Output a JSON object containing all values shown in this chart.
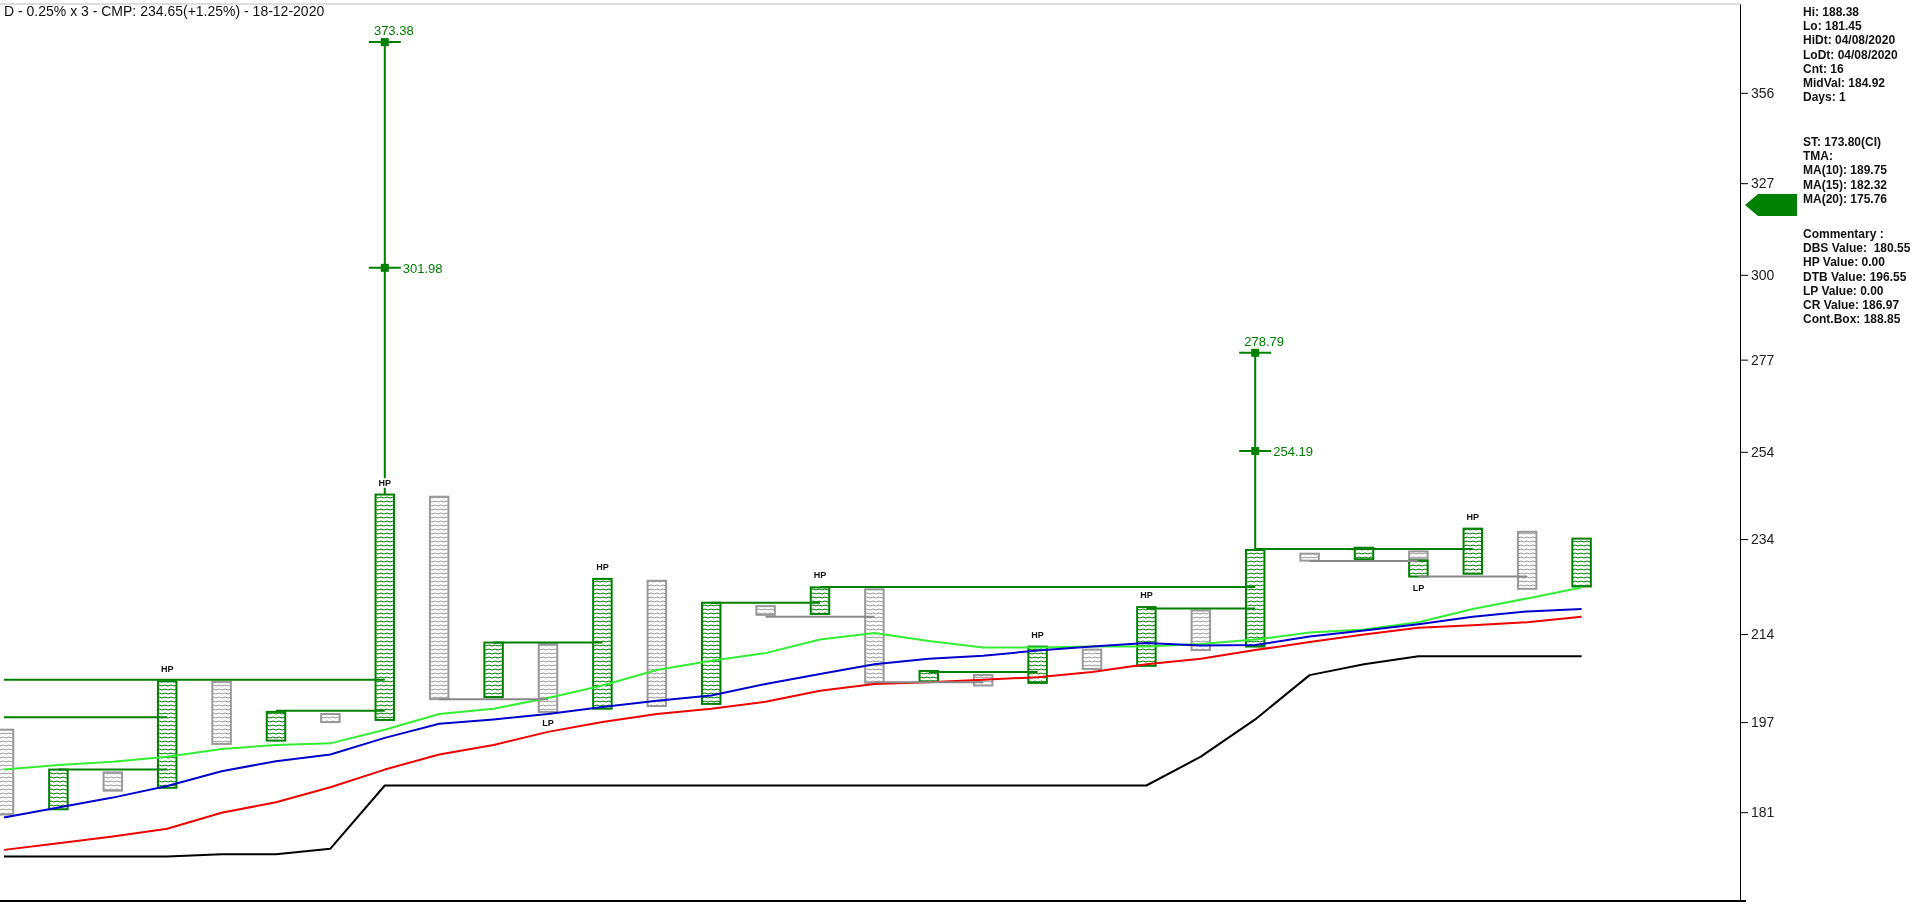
{
  "chart_data": {
    "type": "bar",
    "title": "D - 0.25% x 3 - CMP: 234.65(+1.25%) - 18-12-2020",
    "log": true,
    "ylim": [
      166.5,
      387
    ],
    "yticks": [
      181,
      197,
      214,
      234,
      254,
      277,
      300,
      327,
      356
    ],
    "tick_labels": "y",
    "categories": [
      null,
      null,
      null,
      null,
      null,
      null,
      null,
      null,
      null,
      null,
      null,
      null,
      null,
      null,
      null,
      null,
      null,
      null,
      null,
      null,
      null,
      null,
      null,
      null,
      null,
      null,
      null,
      null,
      null,
      null
    ],
    "series": [
      {
        "type": "line",
        "color": "#33ee33",
        "values": [
          188.4,
          189.2,
          189.8,
          190.7,
          192.1,
          192.8,
          193.1,
          195.6,
          198.5,
          199.5,
          201.5,
          203.9,
          206.9,
          208.7,
          210.2,
          212.9,
          214.2,
          212.6,
          211.3,
          211.3,
          211.5,
          211.5,
          212.0,
          212.9,
          214.3,
          214.9,
          216.4,
          219.1,
          221.3,
          223.6
        ]
      },
      {
        "type": "line",
        "color": "#0000cc",
        "values": [
          180.1,
          181.8,
          183.5,
          185.5,
          188.1,
          189.9,
          191.1,
          194.1,
          196.7,
          197.5,
          198.5,
          199.8,
          201.0,
          202.0,
          204.2,
          206.1,
          208.0,
          209.1,
          209.7,
          210.7,
          211.5,
          212.2,
          211.7,
          211.8,
          213.5,
          214.7,
          216.0,
          217.5,
          218.6,
          219.1
        ]
      },
      {
        "type": "line",
        "color": "#ee0000",
        "values": [
          174.7,
          175.8,
          176.9,
          178.2,
          180.9,
          182.7,
          185.3,
          188.4,
          191.1,
          192.8,
          195.2,
          197.0,
          198.5,
          199.5,
          200.8,
          202.9,
          204.2,
          204.5,
          205.0,
          205.5,
          206.5,
          208.0,
          209.1,
          210.8,
          212.4,
          213.9,
          215.3,
          215.8,
          216.4,
          217.5
        ]
      },
      {
        "type": "line",
        "color": "#000000",
        "values": [
          173.6,
          173.6,
          173.6,
          173.6,
          174.0,
          174.0,
          174.9,
          185.6,
          185.6,
          185.6,
          185.6,
          185.6,
          185.6,
          185.6,
          185.6,
          185.6,
          185.6,
          185.6,
          185.6,
          185.6,
          185.6,
          185.6,
          190.7,
          197.5,
          205.9,
          208.0,
          209.6,
          209.6,
          209.6,
          209.6
        ]
      },
      {
        "type": "line",
        "color": "#008000",
        "values": [
          205.0,
          205.0,
          205.0,
          205.0,
          205.0,
          205.0,
          205.0,
          205.0,
          null,
          null,
          null,
          null,
          null,
          null,
          null,
          null,
          null,
          null,
          null,
          null,
          null,
          null,
          null,
          null,
          null,
          null,
          null,
          null,
          null,
          null
        ]
      },
      {
        "type": "line",
        "color": "#008000",
        "values": [
          197.9,
          197.9,
          197.9,
          197.9,
          null,
          null,
          null,
          null,
          null,
          null,
          null,
          null,
          null,
          null,
          null,
          null,
          null,
          null,
          null,
          null,
          null,
          null,
          null,
          null,
          null,
          null,
          null,
          null,
          null,
          null
        ]
      },
      {
        "type": "line",
        "color": "#008000",
        "values": [
          null,
          188.4,
          188.4,
          188.4,
          null,
          null,
          null,
          null,
          null,
          null,
          null,
          null,
          null,
          null,
          null,
          null,
          null,
          null,
          null,
          null,
          null,
          null,
          null,
          null,
          null,
          null,
          null,
          null,
          null,
          null
        ]
      },
      {
        "type": "line",
        "color": "#008000",
        "values": [
          null,
          null,
          null,
          null,
          null,
          199.1,
          199.1,
          199.1,
          null,
          null,
          null,
          null,
          null,
          null,
          null,
          null,
          null,
          null,
          null,
          null,
          null,
          null,
          null,
          null,
          null,
          null,
          null,
          null,
          null,
          null
        ]
      },
      {
        "type": "line",
        "color": "#888888",
        "values": [
          null,
          null,
          null,
          null,
          null,
          null,
          null,
          null,
          201.3,
          201.3,
          201.3,
          null,
          null,
          null,
          null,
          null,
          null,
          null,
          null,
          null,
          null,
          null,
          null,
          null,
          null,
          null,
          null,
          null,
          null,
          null
        ]
      },
      {
        "type": "line",
        "color": "#008000",
        "values": [
          null,
          null,
          null,
          null,
          null,
          null,
          null,
          null,
          null,
          212.3,
          212.3,
          212.3,
          null,
          null,
          null,
          null,
          null,
          null,
          null,
          null,
          null,
          null,
          null,
          null,
          null,
          null,
          null,
          null,
          null,
          null
        ]
      },
      {
        "type": "line",
        "color": "#008000",
        "values": [
          null,
          null,
          null,
          null,
          null,
          null,
          null,
          null,
          null,
          null,
          null,
          null,
          null,
          220.4,
          220.4,
          220.4,
          null,
          null,
          null,
          null,
          null,
          null,
          null,
          null,
          null,
          null,
          null,
          null,
          null,
          null
        ]
      },
      {
        "type": "line",
        "color": "#888888",
        "values": [
          null,
          null,
          null,
          null,
          null,
          null,
          null,
          null,
          null,
          null,
          null,
          null,
          null,
          null,
          217.5,
          217.5,
          217.5,
          null,
          null,
          null,
          null,
          null,
          null,
          null,
          null,
          null,
          null,
          null,
          null,
          null
        ]
      },
      {
        "type": "line",
        "color": "#008000",
        "values": [
          null,
          null,
          null,
          null,
          null,
          null,
          null,
          null,
          null,
          null,
          null,
          null,
          null,
          null,
          null,
          223.7,
          223.7,
          223.7,
          223.7,
          223.7,
          223.7,
          223.7,
          223.7,
          223.7,
          null,
          null,
          null,
          null,
          null,
          null
        ]
      },
      {
        "type": "line",
        "color": "#888888",
        "values": [
          null,
          null,
          null,
          null,
          null,
          null,
          null,
          null,
          null,
          null,
          null,
          null,
          null,
          null,
          null,
          null,
          204.5,
          204.5,
          204.5,
          null,
          null,
          null,
          null,
          null,
          null,
          null,
          null,
          null,
          null,
          null
        ]
      },
      {
        "type": "line",
        "color": "#008000",
        "values": [
          null,
          null,
          null,
          null,
          null,
          null,
          null,
          null,
          null,
          null,
          null,
          null,
          null,
          null,
          null,
          null,
          null,
          206.5,
          206.5,
          206.5,
          null,
          null,
          null,
          null,
          null,
          null,
          null,
          null,
          null,
          null
        ]
      },
      {
        "type": "line",
        "color": "#008000",
        "values": [
          null,
          null,
          null,
          null,
          null,
          null,
          null,
          null,
          null,
          null,
          null,
          null,
          null,
          null,
          null,
          null,
          null,
          null,
          null,
          null,
          null,
          219.2,
          219.2,
          219.2,
          null,
          null,
          null,
          null,
          null,
          null
        ]
      },
      {
        "type": "line",
        "color": "#008000",
        "values": [
          null,
          null,
          null,
          null,
          null,
          null,
          null,
          null,
          null,
          null,
          null,
          null,
          null,
          null,
          null,
          null,
          null,
          null,
          null,
          null,
          null,
          null,
          null,
          231.8,
          231.8,
          231.8,
          231.8,
          231.8,
          null,
          null
        ]
      },
      {
        "type": "line",
        "color": "#888888",
        "values": [
          null,
          null,
          null,
          null,
          null,
          null,
          null,
          null,
          null,
          null,
          null,
          null,
          null,
          null,
          null,
          null,
          null,
          null,
          null,
          null,
          null,
          null,
          null,
          null,
          229.2,
          229.2,
          229.2,
          null,
          null,
          null
        ]
      },
      {
        "type": "line",
        "color": "#888888",
        "values": [
          null,
          null,
          null,
          null,
          null,
          null,
          null,
          null,
          null,
          null,
          null,
          null,
          null,
          null,
          null,
          null,
          null,
          null,
          null,
          null,
          null,
          null,
          null,
          null,
          null,
          null,
          225.9,
          225.9,
          225.9,
          null
        ]
      },
      {
        "color": "#999999",
        "base": [
          180.6,
          null,
          184.7,
          null,
          193.0,
          null,
          197.0,
          null,
          201.3,
          null,
          198.9,
          null,
          200.0,
          null,
          217.9,
          null,
          204.4,
          null,
          203.9,
          null,
          207.1,
          null,
          210.8,
          null,
          229.3,
          null,
          229.6,
          null,
          223.3,
          null
        ],
        "values": [
          15.0,
          null,
          3.2,
          null,
          11.6,
          null,
          1.5,
          null,
          42.2,
          null,
          13.1,
          null,
          25.0,
          null,
          1.8,
          null,
          18.8,
          null,
          2.0,
          null,
          3.8,
          null,
          8.0,
          null,
          1.5,
          null,
          1.7,
          null,
          12.3,
          null
        ],
        "value_labels": [
          null,
          null,
          null,
          null,
          null,
          null,
          null,
          null,
          null,
          null,
          "LP",
          null,
          null,
          null,
          null,
          null,
          null,
          null,
          null,
          null,
          null,
          null,
          null,
          null,
          null,
          null,
          null,
          null,
          null,
          null
        ]
      },
      {
        "color": "#008000",
        "base": [
          null,
          181.5,
          null,
          185.2,
          null,
          193.6,
          null,
          197.4,
          null,
          201.7,
          null,
          199.5,
          null,
          200.4,
          null,
          218.1,
          null,
          204.7,
          null,
          204.4,
          null,
          207.7,
          null,
          211.5,
          null,
          229.6,
          225.9,
          226.5,
          null,
          223.8
        ],
        "values": [
          null,
          6.9,
          null,
          19.5,
          null,
          5.3,
          null,
          46.6,
          null,
          10.6,
          null,
          25.9,
          null,
          20.0,
          null,
          5.5,
          null,
          2.0,
          null,
          7.1,
          null,
          11.8,
          null,
          20.1,
          null,
          2.5,
          3.4,
          9.8,
          null,
          10.3
        ],
        "value_labels": [
          null,
          null,
          null,
          "HP",
          null,
          null,
          null,
          "HP",
          null,
          null,
          null,
          "HP",
          null,
          null,
          null,
          "HP",
          null,
          null,
          null,
          "HP",
          null,
          "HP",
          null,
          null,
          null,
          null,
          "LP",
          "HP",
          null,
          null
        ]
      },
      {
        "type": "scatter",
        "marker": "square",
        "color": "#008000",
        "values": [
          null,
          null,
          null,
          null,
          null,
          null,
          null,
          301.98,
          null,
          null,
          null,
          null,
          null,
          null,
          null,
          null,
          null,
          null,
          null,
          null,
          null,
          null,
          null,
          254.19,
          null,
          null,
          null,
          null,
          null,
          null
        ],
        "value_labels": [
          null,
          null,
          null,
          null,
          null,
          null,
          null,
          "301.98",
          null,
          null,
          null,
          null,
          null,
          null,
          null,
          null,
          null,
          null,
          null,
          null,
          null,
          null,
          null,
          "254.19",
          null,
          null,
          null,
          null,
          null,
          null
        ]
      },
      {
        "type": "scatter",
        "marker": "square",
        "color": "#008000",
        "values": [
          null,
          null,
          null,
          null,
          null,
          null,
          null,
          373.38,
          null,
          null,
          null,
          null,
          null,
          null,
          null,
          null,
          null,
          null,
          null,
          null,
          null,
          null,
          null,
          278.79,
          null,
          null,
          null,
          null,
          null,
          null
        ],
        "errors": [
          null,
          null,
          null,
          null,
          null,
          null,
          null,
          [
            244.0,
            373.38
          ],
          null,
          null,
          null,
          null,
          null,
          null,
          null,
          null,
          null,
          null,
          null,
          null,
          null,
          null,
          null,
          [
            231.6,
            278.79
          ],
          null,
          null,
          null,
          null,
          null,
          null
        ],
        "value_labels": [
          null,
          null,
          null,
          null,
          null,
          null,
          null,
          "373.38",
          null,
          null,
          null,
          null,
          null,
          null,
          null,
          null,
          null,
          null,
          null,
          null,
          null,
          null,
          null,
          "278.79",
          null,
          null,
          null,
          null,
          null,
          null
        ]
      }
    ],
    "annotations": [
      "Hi: 188.38\nLo: 181.45\nHiDt: 04/08/2020\nLoDt: 04/08/2020\nCnt: 16\nMidVal: 184.92\nDays: 1",
      "ST: 173.80(CI)\nTMA:\nMA(10): 189.75\nMA(15): 182.32\nMA(20): 175.76",
      "Commentary :\nDBS Value:  180.55\nHP Value: 0.00\nDTB Value: 196.55\nLP Value: 0.00\nCR Value: 186.97\nCont.Box: 188.85"
    ]
  }
}
